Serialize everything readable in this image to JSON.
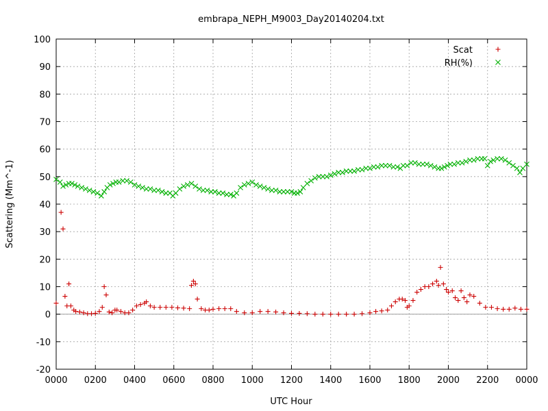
{
  "chart_data": {
    "type": "scatter",
    "title": "embrapa_NEPH_M9003_Day20140204.txt",
    "xlabel": "UTC Hour",
    "ylabel": "Scattering (Mm^-1)",
    "xlim": [
      0,
      24
    ],
    "ylim": [
      -20,
      100
    ],
    "grid": true,
    "legend_position": "top-right",
    "x_ticks": [
      {
        "value": 0,
        "label": "0000"
      },
      {
        "value": 2,
        "label": "0200"
      },
      {
        "value": 4,
        "label": "0400"
      },
      {
        "value": 6,
        "label": "0600"
      },
      {
        "value": 8,
        "label": "0800"
      },
      {
        "value": 10,
        "label": "1000"
      },
      {
        "value": 12,
        "label": "1200"
      },
      {
        "value": 14,
        "label": "1400"
      },
      {
        "value": 16,
        "label": "1600"
      },
      {
        "value": 18,
        "label": "1800"
      },
      {
        "value": 20,
        "label": "2000"
      },
      {
        "value": 22,
        "label": "2200"
      },
      {
        "value": 24,
        "label": "0000"
      }
    ],
    "y_ticks": [
      -20,
      -10,
      0,
      10,
      20,
      30,
      40,
      50,
      60,
      70,
      80,
      90,
      100
    ],
    "series": [
      {
        "name": "Scat",
        "marker": "plus",
        "color": "#cc0000",
        "x": [
          0.0,
          0.25,
          0.35,
          0.45,
          0.55,
          0.65,
          0.75,
          0.9,
          1.0,
          1.2,
          1.4,
          1.6,
          1.8,
          2.0,
          2.2,
          2.35,
          2.45,
          2.55,
          2.7,
          2.85,
          3.0,
          3.1,
          3.3,
          3.5,
          3.7,
          3.9,
          4.1,
          4.3,
          4.5,
          4.6,
          4.8,
          5.0,
          5.3,
          5.6,
          5.9,
          6.2,
          6.5,
          6.8,
          6.9,
          7.0,
          7.1,
          7.2,
          7.4,
          7.6,
          7.8,
          8.0,
          8.3,
          8.6,
          8.9,
          9.2,
          9.6,
          10.0,
          10.4,
          10.8,
          11.2,
          11.6,
          12.0,
          12.4,
          12.8,
          13.2,
          13.6,
          14.0,
          14.4,
          14.8,
          15.2,
          15.6,
          16.0,
          16.3,
          16.6,
          16.9,
          17.1,
          17.3,
          17.5,
          17.65,
          17.8,
          17.9,
          18.0,
          18.2,
          18.4,
          18.6,
          18.8,
          19.0,
          19.2,
          19.4,
          19.5,
          19.6,
          19.75,
          19.9,
          20.0,
          20.2,
          20.35,
          20.5,
          20.65,
          20.8,
          20.95,
          21.1,
          21.3,
          21.6,
          21.9,
          22.2,
          22.5,
          22.8,
          23.1,
          23.4,
          23.7,
          24.0
        ],
        "y": [
          4,
          37,
          31,
          6.5,
          3,
          11,
          3,
          1.5,
          1,
          0.8,
          0.5,
          0.2,
          0.2,
          0.3,
          1,
          2.5,
          10,
          7,
          0.8,
          0.5,
          1.5,
          1.5,
          1,
          0.5,
          0.5,
          1.5,
          3,
          3.5,
          4,
          4.5,
          3,
          2.5,
          2.5,
          2.5,
          2.5,
          2.3,
          2.2,
          2,
          10.5,
          12,
          11,
          5.5,
          2,
          1.5,
          1.5,
          1.8,
          2,
          2,
          2,
          1,
          0.5,
          0.5,
          1,
          1,
          0.8,
          0.5,
          0.3,
          0.3,
          0.2,
          0,
          0,
          0,
          0,
          0,
          0,
          0.2,
          0.5,
          1,
          1.2,
          1.5,
          3,
          4.5,
          5.5,
          5.5,
          5,
          2.5,
          3,
          5,
          8,
          9,
          10,
          10,
          11,
          12,
          10.5,
          17,
          11,
          9,
          8,
          8.5,
          6,
          5,
          8.5,
          6,
          4.5,
          7,
          6.5,
          4,
          2.5,
          2.5,
          2,
          1.8,
          1.8,
          2.2,
          1.8,
          1.8
        ]
      },
      {
        "name": "RH(%)",
        "marker": "cross",
        "color": "#00b000",
        "x": [
          0.0,
          0.2,
          0.35,
          0.5,
          0.65,
          0.8,
          0.95,
          1.1,
          1.3,
          1.5,
          1.7,
          1.9,
          2.1,
          2.3,
          2.45,
          2.6,
          2.75,
          2.9,
          3.05,
          3.2,
          3.4,
          3.6,
          3.8,
          4.0,
          4.2,
          4.4,
          4.6,
          4.8,
          5.0,
          5.2,
          5.4,
          5.6,
          5.8,
          5.95,
          6.1,
          6.3,
          6.5,
          6.7,
          6.9,
          7.1,
          7.3,
          7.5,
          7.7,
          7.9,
          8.1,
          8.3,
          8.5,
          8.7,
          8.9,
          9.05,
          9.2,
          9.4,
          9.6,
          9.8,
          10.0,
          10.2,
          10.4,
          10.6,
          10.8,
          11.0,
          11.2,
          11.4,
          11.6,
          11.8,
          12.0,
          12.15,
          12.3,
          12.45,
          12.6,
          12.8,
          13.0,
          13.2,
          13.4,
          13.6,
          13.8,
          14.0,
          14.2,
          14.4,
          14.6,
          14.8,
          15.0,
          15.2,
          15.4,
          15.6,
          15.8,
          16.0,
          16.2,
          16.4,
          16.6,
          16.8,
          17.0,
          17.2,
          17.4,
          17.55,
          17.7,
          17.9,
          18.1,
          18.3,
          18.5,
          18.7,
          18.9,
          19.1,
          19.3,
          19.5,
          19.65,
          19.8,
          19.95,
          20.1,
          20.3,
          20.5,
          20.7,
          20.9,
          21.1,
          21.3,
          21.5,
          21.7,
          21.85,
          22.0,
          22.15,
          22.3,
          22.5,
          22.7,
          22.9,
          23.1,
          23.3,
          23.5,
          23.65,
          23.8,
          24.0
        ],
        "y": [
          49,
          48,
          46.5,
          47,
          47.5,
          47.5,
          47,
          46.5,
          46,
          45.5,
          45,
          44.5,
          44,
          43,
          44.5,
          46,
          47,
          47.5,
          48,
          48,
          48.5,
          48.5,
          48,
          47,
          46.5,
          46,
          45.5,
          45.5,
          45,
          45,
          44.5,
          44,
          44,
          43,
          44,
          45.5,
          46.5,
          47,
          47.5,
          46.5,
          45.5,
          45,
          45,
          44.5,
          44.5,
          44,
          44,
          43.5,
          43.5,
          43,
          44,
          46,
          47,
          47.5,
          48,
          47,
          46.5,
          46,
          45.5,
          45,
          45,
          44.5,
          44.5,
          44.5,
          44.5,
          44,
          44,
          44.5,
          46,
          47.5,
          48.5,
          49.5,
          50,
          50,
          50,
          50.5,
          51,
          51.5,
          51.5,
          52,
          52,
          52,
          52.5,
          52.5,
          53,
          53,
          53.5,
          53.5,
          54,
          54,
          54,
          53.5,
          53.5,
          53,
          54,
          54,
          55,
          55,
          54.5,
          54.5,
          54.5,
          54,
          53.5,
          53,
          53,
          53.5,
          54,
          54.5,
          54.5,
          55,
          55,
          55.5,
          56,
          56,
          56.5,
          56.5,
          56.5,
          54,
          55.5,
          56,
          56.5,
          56.5,
          56,
          55,
          54,
          53,
          51.5,
          53,
          54.5
        ]
      }
    ]
  }
}
